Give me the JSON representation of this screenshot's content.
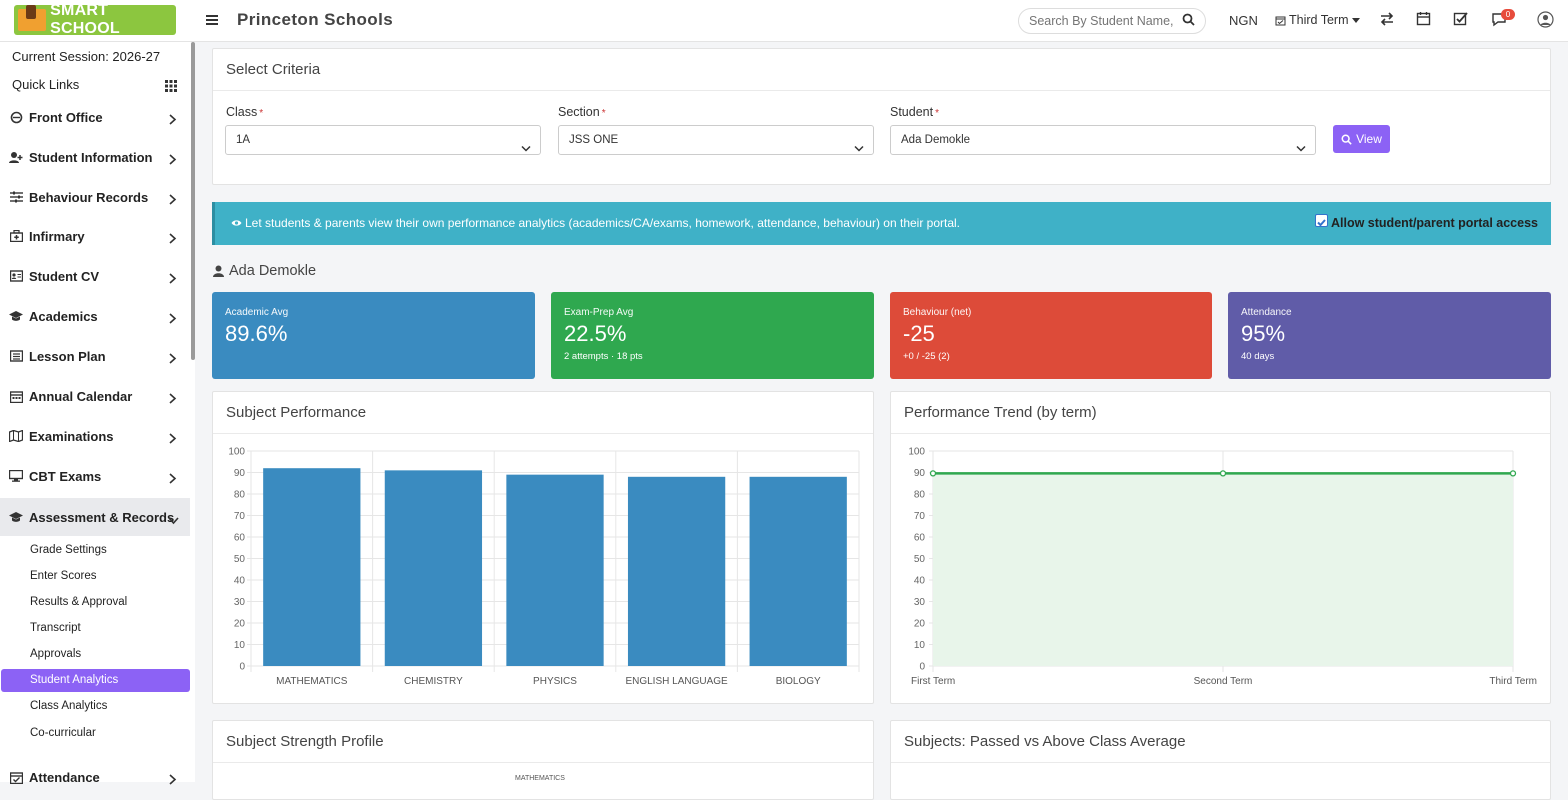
{
  "header": {
    "logo_text": "SMART SCHOOL",
    "school_name": "Princeton Schools",
    "search_placeholder": "Search By Student Name,",
    "currency": "NGN",
    "term": "Third Term",
    "notification_count": "0"
  },
  "sidebar": {
    "session": "Current Session: 2026-27",
    "quick_links": "Quick Links",
    "items": [
      {
        "label": "Front Office",
        "icon": "mug-icon"
      },
      {
        "label": "Student Information",
        "icon": "user-plus-icon"
      },
      {
        "label": "Behaviour Records",
        "icon": "sliders-icon"
      },
      {
        "label": "Infirmary",
        "icon": "medkit-icon"
      },
      {
        "label": "Student CV",
        "icon": "id-card-icon"
      },
      {
        "label": "Academics",
        "icon": "graduation-cap-icon"
      },
      {
        "label": "Lesson Plan",
        "icon": "newspaper-icon"
      },
      {
        "label": "Annual Calendar",
        "icon": "calendar-icon"
      },
      {
        "label": "Examinations",
        "icon": "map-icon"
      },
      {
        "label": "CBT Exams",
        "icon": "desktop-icon"
      },
      {
        "label": "Assessment & Records",
        "icon": "graduation-cap-icon"
      },
      {
        "label": "Attendance",
        "icon": "calendar-check-icon"
      }
    ],
    "sub_items": [
      "Grade Settings",
      "Enter Scores",
      "Results & Approval",
      "Transcript",
      "Approvals",
      "Student Analytics",
      "Class Analytics",
      "Co-curricular"
    ]
  },
  "criteria": {
    "title": "Select Criteria",
    "class_label": "Class",
    "class_value": "1A",
    "section_label": "Section",
    "section_value": "JSS ONE",
    "student_label": "Student",
    "student_value": "Ada Demokle",
    "view_button": "View"
  },
  "banner": {
    "message": "Let students & parents view their own performance analytics (academics/CA/exams, homework, attendance, behaviour) on their portal.",
    "checkbox_label": "Allow student/parent portal access",
    "checked": true
  },
  "student_name": "Ada Demokle",
  "stats": [
    {
      "title": "Academic Avg",
      "value": "89.6%",
      "sub": "",
      "color": "#3a8bc0"
    },
    {
      "title": "Exam-Prep Avg",
      "value": "22.5%",
      "sub": "2 attempts · 18 pts",
      "color": "#2fa84f"
    },
    {
      "title": "Behaviour (net)",
      "value": "-25",
      "sub": "+0 / -25 (2)",
      "color": "#dd4b39"
    },
    {
      "title": "Attendance",
      "value": "95%",
      "sub": "40 days",
      "color": "#605ca8"
    }
  ],
  "panels": {
    "subject_performance": "Subject Performance",
    "performance_trend": "Performance Trend (by term)",
    "strength_profile": "Subject Strength Profile",
    "passed_vs_above": "Subjects: Passed vs Above Class Average",
    "radar_top_label": "MATHEMATICS"
  },
  "chart_data": [
    {
      "type": "bar",
      "title": "Subject Performance",
      "categories": [
        "MATHEMATICS",
        "CHEMISTRY",
        "PHYSICS",
        "ENGLISH LANGUAGE",
        "BIOLOGY"
      ],
      "values": [
        92,
        91,
        89,
        88,
        88
      ],
      "ylim": [
        0,
        100
      ],
      "yticks": [
        0,
        10,
        20,
        30,
        40,
        50,
        60,
        70,
        80,
        90,
        100
      ],
      "color": "#3a8bc0",
      "grid": true
    },
    {
      "type": "line",
      "title": "Performance Trend (by term)",
      "categories": [
        "First Term",
        "Second Term",
        "Third Term"
      ],
      "values": [
        89.6,
        89.6,
        89.6
      ],
      "ylim": [
        0,
        100
      ],
      "yticks": [
        0,
        10,
        20,
        30,
        40,
        50,
        60,
        70,
        80,
        90,
        100
      ],
      "color": "#2fa84f",
      "fill": "#e8f5ea",
      "grid": true
    }
  ]
}
